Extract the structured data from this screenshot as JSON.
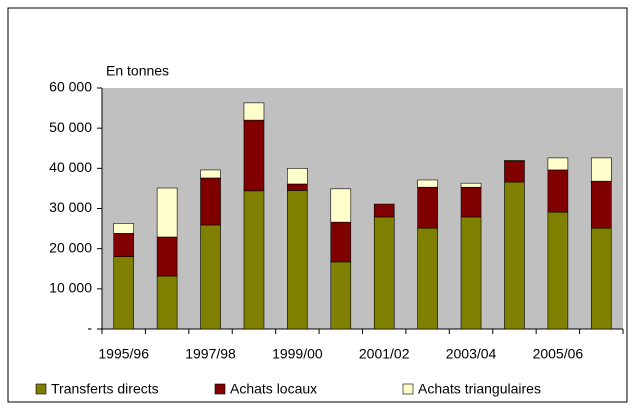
{
  "chart_data": {
    "type": "stacked_bar",
    "axis_label": "En tonnes",
    "categories": [
      "1995/96",
      null,
      "1997/98",
      null,
      "1999/00",
      null,
      "2001/02",
      null,
      "2003/04",
      null,
      "2005/06",
      null
    ],
    "series": [
      {
        "name": "Transferts directs",
        "color": "#808000",
        "values": [
          18000,
          13200,
          25900,
          34400,
          34500,
          16700,
          27900,
          25100,
          27900,
          36600,
          29100,
          25100
        ]
      },
      {
        "name": "Achats locaux",
        "color": "#800000",
        "values": [
          5800,
          9700,
          11700,
          17600,
          1600,
          9900,
          3200,
          10200,
          7400,
          5200,
          10500,
          11700
        ]
      },
      {
        "name": "Achats triangulaires",
        "color": "#ffffcc",
        "values": [
          2500,
          12200,
          2000,
          4300,
          3900,
          8300,
          0,
          1800,
          1000,
          200,
          3000,
          5800
        ]
      }
    ],
    "ylim": [
      0,
      60000
    ],
    "yticks": [
      {
        "value": 0,
        "label": "-"
      },
      {
        "value": 10000,
        "label": "10 000"
      },
      {
        "value": 20000,
        "label": "20 000"
      },
      {
        "value": 30000,
        "label": "30 000"
      },
      {
        "value": 40000,
        "label": "40 000"
      },
      {
        "value": 50000,
        "label": "50 000"
      },
      {
        "value": 60000,
        "label": "60 000"
      }
    ],
    "plot_background": "#c0c0c0",
    "legend": "bottom"
  }
}
